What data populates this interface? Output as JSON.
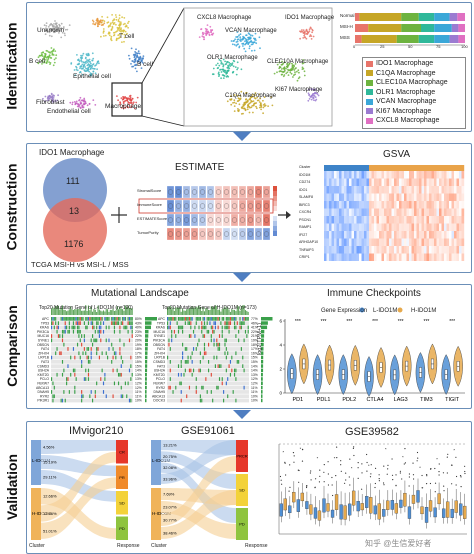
{
  "stages": {
    "identification": "Identification",
    "construction": "Construction",
    "comparison": "Comparison",
    "validation": "Validation"
  },
  "identification": {
    "tsne_labels": [
      "Unknown",
      "T cell",
      "B cell",
      "Epithelial cell",
      "Fibroblast",
      "B cell",
      "Endothelial cell",
      "Macrophage"
    ],
    "zoom_labels": [
      "CXCL8 Macrophage",
      "VCAN Macrophage",
      "IDO1 Macrophage",
      "OLR1 Macrophage",
      "CLEC10A Macrophage",
      "C1QA Macrophage",
      "KI67 Macrophage"
    ],
    "bar_rows": [
      "Normal",
      "MSI-H",
      "MSS"
    ],
    "bar_ticks": [
      "0",
      "25",
      "50",
      "75",
      "100"
    ],
    "legend": [
      {
        "label": "IDO1 Macrophage",
        "color": "#e8746a"
      },
      {
        "label": "C1QA Macrophage",
        "color": "#c6a626"
      },
      {
        "label": "CLEC10A Macrophage",
        "color": "#6db33f"
      },
      {
        "label": "OLR1 Macrophage",
        "color": "#2fb89a"
      },
      {
        "label": "VCAN Macrophage",
        "color": "#3aa7d8"
      },
      {
        "label": "KI67 Macrophage",
        "color": "#9b7bd1"
      },
      {
        "label": "CXCL8 Macrophage",
        "color": "#e070c2"
      }
    ]
  },
  "construction": {
    "venn_title": "IDO1 Macrophage",
    "venn_top": "111",
    "venn_mid": "13",
    "venn_bottom": "1176",
    "venn_caption": "TCGA MSI-H vs MSI-L / MSS",
    "estimate_title": "ESTIMATE",
    "estimate_rows": [
      "StromalScore",
      "ImmuneScore",
      "ESTIMATEScore",
      "TumorPurity"
    ],
    "gsva_title": "GSVA",
    "gsva_genes": [
      "Cluster",
      "IDO1M",
      "CD274",
      "IDO1",
      "SLAMF8",
      "BIRC3",
      "CXCR4",
      "PSCN1",
      "RAMP1",
      "IFI27",
      "ARHGAP10",
      "TNFAIP3",
      "CRIP1"
    ]
  },
  "comparison": {
    "mut_title": "Mutational Landscape",
    "mut_left_title": "Top20 Mutation Gene of L-IDO1M (n=190)",
    "mut_right_title": "Top20 Mutation Gene of H-IDO1M (n=173)",
    "mut_genes_left": [
      "APC",
      "TP53",
      "KRAS",
      "PIK3CA",
      "MUC16",
      "SYNE1",
      "OBSCN",
      "FAT4",
      "ZFHX4",
      "LRP1B",
      "FAT3",
      "CSMD3",
      "USH2A",
      "KMT2D",
      "PCLO",
      "FBXW7",
      "ABCA13",
      "DNAH5",
      "RYR2",
      "PIK3R1"
    ],
    "mut_genes_right": [
      "APC",
      "TP53",
      "KRAS",
      "MUC16",
      "SYNE1",
      "PIK3CA",
      "OBSCN",
      "FAT4",
      "ZFHX4",
      "LRP1B",
      "CSMD3",
      "FAT3",
      "USH2A",
      "KMT2D",
      "PCLO",
      "FBXW7",
      "RYR2",
      "DNAH5",
      "ABCA13",
      "DOCK3"
    ],
    "mut_pct_left": [
      "80%",
      "43%",
      "40%",
      "23%",
      "22%",
      "20%",
      "19%",
      "18%",
      "17%",
      "16%",
      "15%",
      "15%",
      "14%",
      "13%",
      "13%",
      "12%",
      "12%",
      "11%",
      "11%",
      "10%"
    ],
    "mut_pct_right": [
      "77%",
      "46%",
      "41%",
      "22%",
      "21%",
      "19%",
      "18%",
      "17%",
      "16%",
      "15%",
      "15%",
      "14%",
      "14%",
      "13%",
      "12%",
      "12%",
      "11%",
      "11%",
      "10%",
      "10%"
    ],
    "ic_title": "Immune Checkpoints",
    "ic_legend_title": "Gene Expression",
    "ic_legend_low": "L-IDO1M",
    "ic_legend_high": "H-IDO1M",
    "ic_ylabel": "log2(TPM+1)",
    "ic_yticks": [
      "0",
      "2",
      "4",
      "6"
    ],
    "ic_genes": [
      "PD1",
      "PDL1",
      "PDL2",
      "CTLA4",
      "LAG3",
      "TIM3",
      "TIGIT"
    ],
    "ic_sig": [
      "***",
      "***",
      "***",
      "***",
      "***",
      "***",
      "***"
    ],
    "ic_low_color": "#4f8fd4",
    "ic_high_color": "#e6a94c"
  },
  "validation": {
    "sankey1_title": "IMvigor210",
    "sankey1_clusters": [
      "L-IDO1M",
      "H-IDO1M"
    ],
    "sankey1_pcts": [
      "4.56%",
      "15.19%",
      "29.11%",
      "12.66%",
      "12.66%",
      "51.01%"
    ],
    "sankey1_resp": [
      "CR",
      "PR",
      "SD",
      "PD"
    ],
    "sankey2_title": "GSE91061",
    "sankey2_clusters": [
      "L-IDO1M",
      "H-IDO1M"
    ],
    "sankey2_pcts": [
      "13.21%",
      "20.75%",
      "32.08%",
      "33.96%",
      "7.69%",
      "23.07%",
      "30.77%",
      "38.46%"
    ],
    "sankey2_resp": [
      "PRCR",
      "SD",
      "PD"
    ],
    "axis_cluster": "Cluster",
    "axis_response": "Response",
    "resp_colors": {
      "CR": "#e6372a",
      "PR": "#f08a2a",
      "SD": "#f3d23a",
      "PD": "#8fc43f"
    },
    "box_title": "GSE39582",
    "watermark": "知乎 @生信爱好者"
  }
}
